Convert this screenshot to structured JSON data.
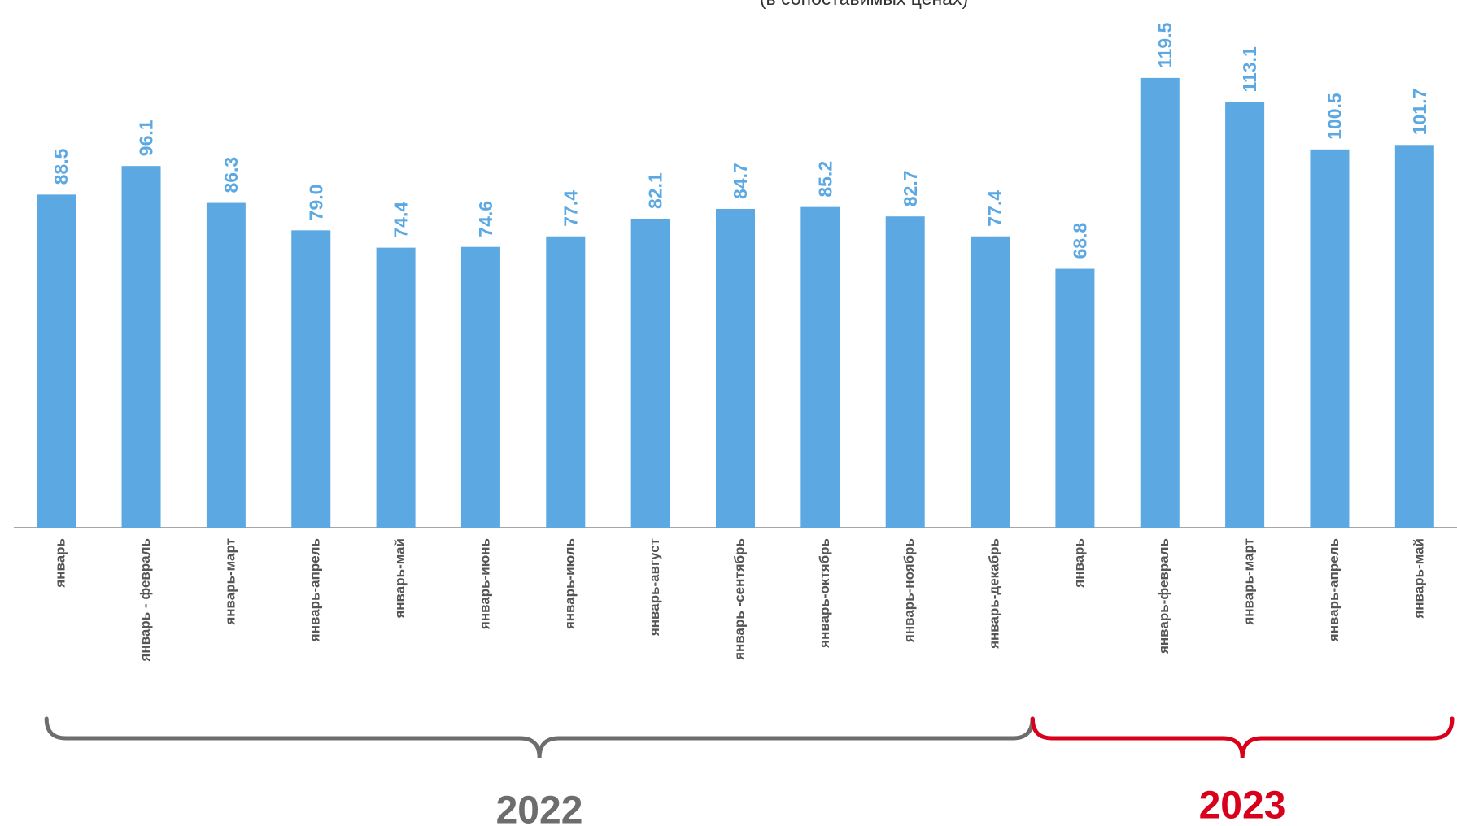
{
  "chart_data": {
    "type": "bar",
    "subtitle": "(в сопоставимых ценах)",
    "categories": [
      "январь",
      "январь - февраль",
      "январь-март",
      "январь-апрель",
      "январь-май",
      "январь-июнь",
      "январь-июль",
      "январь-август",
      "январь -сентябрь",
      "январь-октябрь",
      "январь-ноябрь",
      "январь-декабрь",
      "январь",
      "январь-февраль",
      "январь-март",
      "январь-апрель",
      "январь-май"
    ],
    "values": [
      88.5,
      96.1,
      86.3,
      79.0,
      74.4,
      74.6,
      77.4,
      82.1,
      84.7,
      85.2,
      82.7,
      77.4,
      68.8,
      119.5,
      113.1,
      100.5,
      101.7
    ],
    "value_labels": [
      "88.5",
      "96.1",
      "86.3",
      "79.0",
      "74.4",
      "74.6",
      "77.4",
      "82.1",
      "84.7",
      "85.2",
      "82.7",
      "77.4",
      "68.8",
      "119.5",
      "113.1",
      "100.5",
      "101.7"
    ],
    "color": "#5ba8e3",
    "ylim": [
      0,
      140
    ],
    "groups": [
      {
        "label": "2022",
        "color": "#6d6d6d"
      },
      {
        "label": "2023",
        "color": "#d9001b"
      }
    ]
  }
}
